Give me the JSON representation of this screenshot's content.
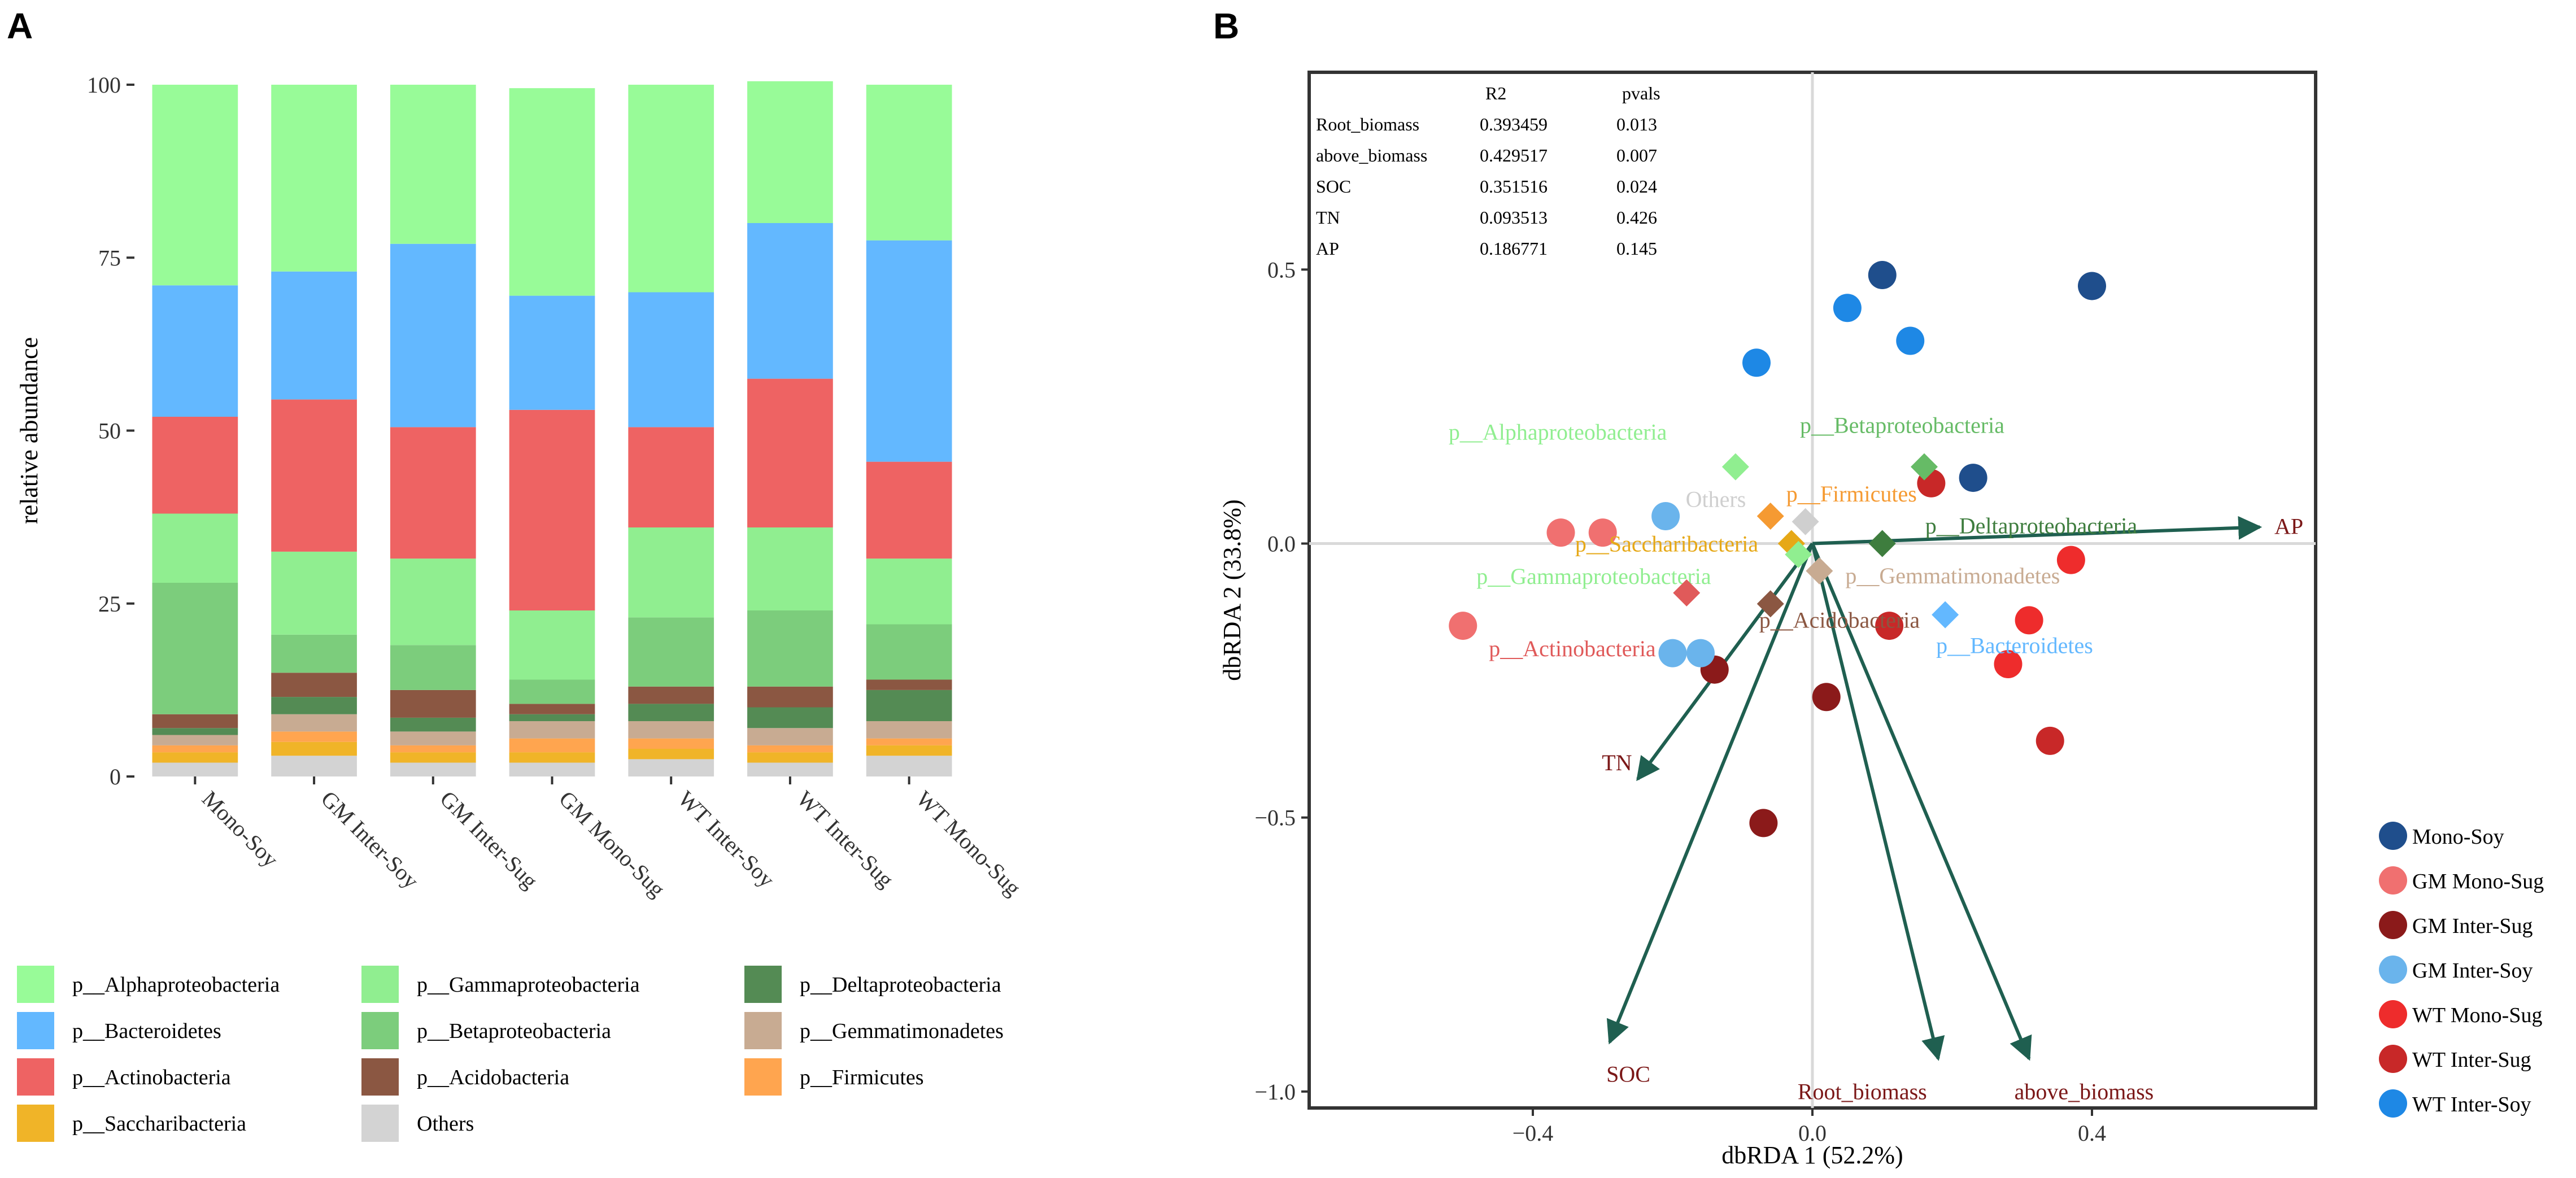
{
  "panels": {
    "a": "A",
    "b": "B"
  },
  "chart_data": [
    {
      "type": "bar",
      "stacked": true,
      "ylabel": "relative abundance",
      "ylim": [
        0,
        100
      ],
      "yticks": [
        "0",
        "25",
        "50",
        "75",
        "100"
      ],
      "categories": [
        "Mono-Soy",
        "GM Inter-Soy",
        "GM Inter-Sug",
        "GM Mono-Sug",
        "WT Inter-Soy",
        "WT Inter-Sug",
        "WT Mono-Sug"
      ],
      "series": [
        {
          "name": "Others",
          "color": "#d3d3d3",
          "values": [
            2,
            3,
            2,
            2,
            2.5,
            2,
            3
          ]
        },
        {
          "name": "p__Saccharibacteria",
          "color": "#f0b428",
          "values": [
            1.5,
            2,
            1.5,
            1.5,
            1.5,
            1.5,
            1.5
          ]
        },
        {
          "name": "p__Firmicutes",
          "color": "#ffa54f",
          "values": [
            1,
            1.5,
            1,
            2,
            1.5,
            1,
            1
          ]
        },
        {
          "name": "p__Gemmatimonadetes",
          "color": "#c8ab92",
          "values": [
            1.5,
            2.5,
            2,
            2.5,
            2.5,
            2.5,
            2.5
          ]
        },
        {
          "name": "p__Deltaproteobacteria",
          "color": "#548b54",
          "values": [
            1,
            2.5,
            2,
            1,
            2.5,
            3,
            4.5
          ]
        },
        {
          "name": "p__Acidobacteria",
          "color": "#8b5742",
          "values": [
            2,
            3.5,
            4,
            1.5,
            2.5,
            3,
            1.5
          ]
        },
        {
          "name": "p__Betaproteobacteria",
          "color": "#7ccd7c",
          "values": [
            19,
            5.5,
            6.5,
            3.5,
            10,
            11,
            8
          ]
        },
        {
          "name": "p__Gammaproteobacteria",
          "color": "#90ee90",
          "values": [
            10,
            12,
            12.5,
            10,
            13,
            12,
            9.5
          ]
        },
        {
          "name": "p__Actinobacteria",
          "color": "#ee6363",
          "values": [
            14,
            22,
            19,
            29,
            14.5,
            21.5,
            14
          ]
        },
        {
          "name": "p__Bacteroidetes",
          "color": "#63b8ff",
          "values": [
            19,
            18.5,
            26.5,
            16.5,
            19.5,
            22.5,
            32
          ]
        },
        {
          "name": "p__Alphaproteobacteria",
          "color": "#98fb98",
          "values": [
            29,
            27,
            23,
            30,
            30,
            20.5,
            22.5
          ]
        }
      ],
      "legend": [
        {
          "name": "p__Alphaproteobacteria",
          "color": "#98fb98"
        },
        {
          "name": "p__Bacteroidetes",
          "color": "#63b8ff"
        },
        {
          "name": "p__Actinobacteria",
          "color": "#ee6363"
        },
        {
          "name": "p__Saccharibacteria",
          "color": "#f0b428"
        },
        {
          "name": "p__Gammaproteobacteria",
          "color": "#90ee90"
        },
        {
          "name": "p__Betaproteobacteria",
          "color": "#7ccd7c"
        },
        {
          "name": "p__Acidobacteria",
          "color": "#8b5742"
        },
        {
          "name": "Others",
          "color": "#d3d3d3"
        },
        {
          "name": "p__Deltaproteobacteria",
          "color": "#548b54"
        },
        {
          "name": "p__Gemmatimonadetes",
          "color": "#c8ab92"
        },
        {
          "name": "p__Firmicutes",
          "color": "#ffa54f"
        }
      ]
    },
    {
      "type": "scatter",
      "xlabel": "dbRDA 1 (52.2%)",
      "ylabel": "dbRDA 2 (33.8%)",
      "xlim": [
        -0.72,
        0.72
      ],
      "ylim": [
        -1.03,
        0.86
      ],
      "xticks": [
        -0.4,
        0,
        0.4
      ],
      "xtick_labels": [
        "−0.4",
        "0.0",
        "0.4"
      ],
      "yticks": [
        0.5,
        0,
        -0.5,
        -1
      ],
      "ytick_labels": [
        "0.5",
        "0.0",
        "−0.5",
        "−1.0"
      ],
      "stats_table": {
        "headers": [
          "",
          "R2",
          "pvals"
        ],
        "rows": [
          [
            "Root_biomass",
            "0.393459",
            "0.013"
          ],
          [
            "above_biomass",
            "0.429517",
            "0.007"
          ],
          [
            "SOC",
            "0.351516",
            "0.024"
          ],
          [
            "TN",
            "0.093513",
            "0.426"
          ],
          [
            "AP",
            "0.186771",
            "0.145"
          ]
        ]
      },
      "groups": [
        {
          "name": "Mono-Soy",
          "color": "#1f4e8c",
          "points": [
            [
              0.1,
              0.49
            ],
            [
              0.4,
              0.47
            ],
            [
              0.23,
              0.12
            ]
          ]
        },
        {
          "name": "GM Mono-Sug",
          "color": "#f07070",
          "points": [
            [
              -0.36,
              0.02
            ],
            [
              -0.3,
              0.02
            ],
            [
              -0.5,
              -0.15
            ]
          ]
        },
        {
          "name": "GM Inter-Sug",
          "color": "#8b1a1a",
          "points": [
            [
              -0.14,
              -0.23
            ],
            [
              0.02,
              -0.28
            ],
            [
              -0.07,
              -0.51
            ]
          ]
        },
        {
          "name": "GM Inter-Soy",
          "color": "#6ab4ec",
          "points": [
            [
              -0.2,
              -0.2
            ],
            [
              -0.16,
              -0.2
            ],
            [
              -0.21,
              0.05
            ]
          ]
        },
        {
          "name": "WT Mono-Sug",
          "color": "#ee2c2c",
          "points": [
            [
              0.37,
              -0.03
            ],
            [
              0.31,
              -0.14
            ],
            [
              0.28,
              -0.22
            ]
          ]
        },
        {
          "name": "WT Inter-Sug",
          "color": "#c82828",
          "points": [
            [
              0.17,
              0.11
            ],
            [
              0.11,
              -0.15
            ],
            [
              0.34,
              -0.36
            ]
          ]
        },
        {
          "name": "WT Inter-Soy",
          "color": "#1e88e5",
          "points": [
            [
              -0.08,
              0.33
            ],
            [
              0.05,
              0.43
            ],
            [
              0.14,
              0.37
            ]
          ]
        }
      ],
      "species": [
        {
          "name": "p__Alphaproteobacteria",
          "x": -0.11,
          "y": 0.14,
          "color": "#90ee90"
        },
        {
          "name": "p__Betaproteobacteria",
          "x": 0.16,
          "y": 0.14,
          "color": "#66bb66"
        },
        {
          "name": "p__Firmicutes",
          "x": -0.06,
          "y": 0.05,
          "color": "#f59a32"
        },
        {
          "name": "Others",
          "x": -0.01,
          "y": 0.04,
          "color": "#cfcfcf"
        },
        {
          "name": "p__Saccharibacteria",
          "x": -0.03,
          "y": 0.0,
          "color": "#e6a817"
        },
        {
          "name": "p__Gammaproteobacteria",
          "x": -0.02,
          "y": -0.02,
          "color": "#90ee90"
        },
        {
          "name": "p__Deltaproteobacteria",
          "x": 0.1,
          "y": 0.0,
          "color": "#3e7d3e"
        },
        {
          "name": "p__Gemmatimonadetes",
          "x": 0.01,
          "y": -0.05,
          "color": "#c8ab92"
        },
        {
          "name": "p__Actinobacteria",
          "x": -0.18,
          "y": -0.09,
          "color": "#e05a5a"
        },
        {
          "name": "p__Acidobacteria",
          "x": -0.06,
          "y": -0.11,
          "color": "#8b5742"
        },
        {
          "name": "p__Bacteroidetes",
          "x": 0.19,
          "y": -0.13,
          "color": "#63b8ff"
        }
      ],
      "arrows": [
        {
          "name": "AP",
          "x": 0.64,
          "y": 0.03
        },
        {
          "name": "TN",
          "x": -0.25,
          "y": -0.43
        },
        {
          "name": "SOC",
          "x": -0.29,
          "y": -0.91
        },
        {
          "name": "Root_biomass",
          "x": 0.18,
          "y": -0.94
        },
        {
          "name": "above_biomass",
          "x": 0.31,
          "y": -0.94
        }
      ],
      "arrow_color": "#1f5f50",
      "arrow_label_color": "#7b1818",
      "legend_position": "right"
    }
  ]
}
